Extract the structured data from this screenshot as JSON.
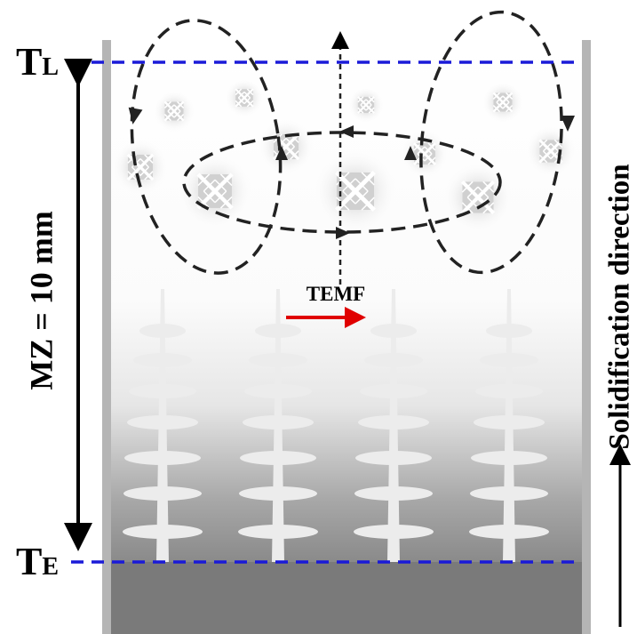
{
  "labels": {
    "liquidus": {
      "symbol": "T",
      "subscript": "L"
    },
    "eutectic": {
      "symbol": "T",
      "subscript": "E"
    },
    "mushy_zone": "MZ = 10 mm",
    "flow": "TEMF",
    "direction": "Solidification direction"
  }
}
